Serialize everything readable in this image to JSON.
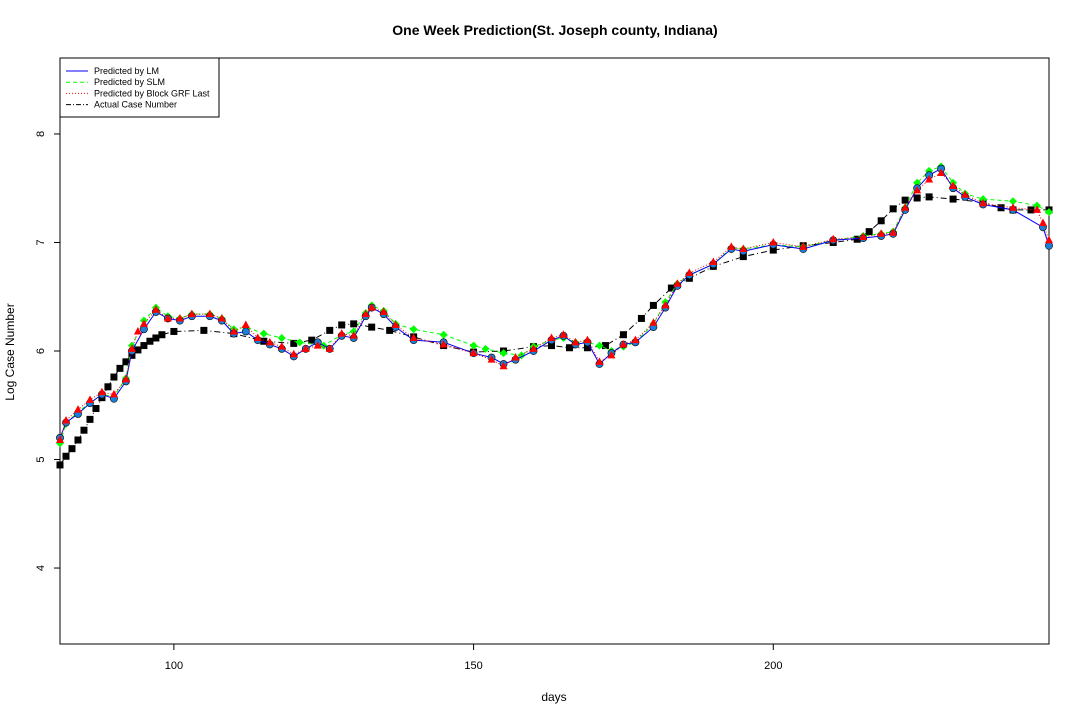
{
  "chart_data": {
    "type": "line",
    "title": "One Week Prediction(St. Joseph county, Indiana)",
    "xlabel": "days",
    "ylabel": "Log Case Number",
    "xlim": [
      81,
      246
    ],
    "ylim": [
      3.3,
      8.7
    ],
    "x_ticks": [
      100,
      150,
      200
    ],
    "y_ticks": [
      4,
      5,
      6,
      7,
      8
    ],
    "grid": false,
    "legend_position": "top-left",
    "legend": [
      {
        "label": "Predicted by LM",
        "color": "#0000ff",
        "dash": "solid"
      },
      {
        "label": "Predicted by SLM",
        "color": "#00ff00",
        "dash": "dashed"
      },
      {
        "label": "Predicted by Block GRF Last",
        "color": "#ff0000",
        "dash": "dotted"
      },
      {
        "label": "Actual Case Number",
        "color": "#000000",
        "dash": "dotdash"
      }
    ],
    "series": [
      {
        "name": "Actual Case Number",
        "color": "#000000",
        "marker": "square",
        "points": [
          [
            81,
            4.95
          ],
          [
            82,
            5.03
          ],
          [
            83,
            5.1
          ],
          [
            84,
            5.18
          ],
          [
            85,
            5.27
          ],
          [
            86,
            5.37
          ],
          [
            87,
            5.47
          ],
          [
            88,
            5.57
          ],
          [
            89,
            5.67
          ],
          [
            90,
            5.76
          ],
          [
            91,
            5.84
          ],
          [
            92,
            5.9
          ],
          [
            93,
            5.96
          ],
          [
            94,
            6.01
          ],
          [
            95,
            6.05
          ],
          [
            96,
            6.09
          ],
          [
            97,
            6.12
          ],
          [
            98,
            6.15
          ],
          [
            100,
            6.18
          ],
          [
            105,
            6.19
          ],
          [
            110,
            6.16
          ],
          [
            115,
            6.09
          ],
          [
            120,
            6.07
          ],
          [
            123,
            6.1
          ],
          [
            126,
            6.19
          ],
          [
            128,
            6.24
          ],
          [
            130,
            6.25
          ],
          [
            133,
            6.22
          ],
          [
            136,
            6.19
          ],
          [
            140,
            6.13
          ],
          [
            145,
            6.05
          ],
          [
            150,
            5.99
          ],
          [
            155,
            6.0
          ],
          [
            160,
            6.04
          ],
          [
            163,
            6.05
          ],
          [
            166,
            6.03
          ],
          [
            169,
            6.03
          ],
          [
            172,
            6.05
          ],
          [
            175,
            6.15
          ],
          [
            178,
            6.3
          ],
          [
            180,
            6.42
          ],
          [
            183,
            6.58
          ],
          [
            186,
            6.67
          ],
          [
            190,
            6.78
          ],
          [
            195,
            6.87
          ],
          [
            200,
            6.93
          ],
          [
            205,
            6.97
          ],
          [
            210,
            7.0
          ],
          [
            214,
            7.03
          ],
          [
            216,
            7.1
          ],
          [
            218,
            7.2
          ],
          [
            220,
            7.31
          ],
          [
            222,
            7.39
          ],
          [
            224,
            7.41
          ],
          [
            226,
            7.42
          ],
          [
            230,
            7.4
          ],
          [
            235,
            7.37
          ],
          [
            238,
            7.32
          ],
          [
            240,
            7.3
          ],
          [
            243,
            7.3
          ],
          [
            246,
            7.3
          ]
        ]
      },
      {
        "name": "Predicted by SLM",
        "color": "#00ff00",
        "marker": "diamond",
        "points": [
          [
            81,
            5.15
          ],
          [
            82,
            5.33
          ],
          [
            84,
            5.44
          ],
          [
            86,
            5.52
          ],
          [
            88,
            5.6
          ],
          [
            90,
            5.58
          ],
          [
            92,
            5.75
          ],
          [
            93,
            6.05
          ],
          [
            95,
            6.28
          ],
          [
            97,
            6.4
          ],
          [
            99,
            6.32
          ],
          [
            101,
            6.3
          ],
          [
            103,
            6.34
          ],
          [
            106,
            6.34
          ],
          [
            108,
            6.3
          ],
          [
            110,
            6.2
          ],
          [
            112,
            6.22
          ],
          [
            115,
            6.16
          ],
          [
            118,
            6.12
          ],
          [
            121,
            6.08
          ],
          [
            125,
            6.05
          ],
          [
            128,
            6.15
          ],
          [
            130,
            6.18
          ],
          [
            132,
            6.35
          ],
          [
            133,
            6.42
          ],
          [
            135,
            6.37
          ],
          [
            137,
            6.25
          ],
          [
            140,
            6.2
          ],
          [
            145,
            6.15
          ],
          [
            150,
            6.05
          ],
          [
            152,
            6.02
          ],
          [
            155,
            5.98
          ],
          [
            158,
            5.96
          ],
          [
            160,
            6.04
          ],
          [
            163,
            6.1
          ],
          [
            165,
            6.12
          ],
          [
            167,
            6.08
          ],
          [
            169,
            6.08
          ],
          [
            171,
            6.05
          ],
          [
            173,
            6.0
          ],
          [
            175,
            6.04
          ],
          [
            177,
            6.08
          ],
          [
            180,
            6.25
          ],
          [
            182,
            6.45
          ],
          [
            184,
            6.62
          ],
          [
            186,
            6.7
          ],
          [
            190,
            6.8
          ],
          [
            193,
            6.95
          ],
          [
            195,
            6.94
          ],
          [
            200,
            6.98
          ],
          [
            205,
            6.96
          ],
          [
            210,
            7.02
          ],
          [
            215,
            7.06
          ],
          [
            218,
            7.08
          ],
          [
            220,
            7.1
          ],
          [
            222,
            7.32
          ],
          [
            224,
            7.55
          ],
          [
            226,
            7.66
          ],
          [
            228,
            7.7
          ],
          [
            230,
            7.55
          ],
          [
            232,
            7.45
          ],
          [
            235,
            7.4
          ],
          [
            240,
            7.38
          ],
          [
            244,
            7.34
          ],
          [
            246,
            7.28
          ]
        ]
      },
      {
        "name": "Predicted by LM",
        "color": "#0000ff",
        "marker": "circle",
        "points": [
          [
            81,
            5.2
          ],
          [
            82,
            5.34
          ],
          [
            84,
            5.42
          ],
          [
            86,
            5.52
          ],
          [
            88,
            5.6
          ],
          [
            90,
            5.56
          ],
          [
            92,
            5.72
          ],
          [
            93,
            6.0
          ],
          [
            95,
            6.2
          ],
          [
            97,
            6.36
          ],
          [
            99,
            6.3
          ],
          [
            101,
            6.28
          ],
          [
            103,
            6.32
          ],
          [
            106,
            6.32
          ],
          [
            108,
            6.28
          ],
          [
            110,
            6.16
          ],
          [
            112,
            6.18
          ],
          [
            114,
            6.1
          ],
          [
            116,
            6.06
          ],
          [
            118,
            6.02
          ],
          [
            120,
            5.95
          ],
          [
            122,
            6.02
          ],
          [
            124,
            6.08
          ],
          [
            126,
            6.02
          ],
          [
            128,
            6.14
          ],
          [
            130,
            6.12
          ],
          [
            132,
            6.32
          ],
          [
            133,
            6.4
          ],
          [
            135,
            6.34
          ],
          [
            137,
            6.22
          ],
          [
            140,
            6.1
          ],
          [
            145,
            6.08
          ],
          [
            150,
            5.98
          ],
          [
            153,
            5.94
          ],
          [
            155,
            5.88
          ],
          [
            157,
            5.92
          ],
          [
            160,
            6.0
          ],
          [
            163,
            6.1
          ],
          [
            165,
            6.14
          ],
          [
            167,
            6.06
          ],
          [
            169,
            6.08
          ],
          [
            171,
            5.88
          ],
          [
            173,
            5.98
          ],
          [
            175,
            6.06
          ],
          [
            177,
            6.08
          ],
          [
            180,
            6.22
          ],
          [
            182,
            6.4
          ],
          [
            184,
            6.6
          ],
          [
            186,
            6.7
          ],
          [
            190,
            6.8
          ],
          [
            193,
            6.94
          ],
          [
            195,
            6.92
          ],
          [
            200,
            6.98
          ],
          [
            205,
            6.94
          ],
          [
            210,
            7.02
          ],
          [
            215,
            7.04
          ],
          [
            218,
            7.06
          ],
          [
            220,
            7.08
          ],
          [
            222,
            7.3
          ],
          [
            224,
            7.5
          ],
          [
            226,
            7.62
          ],
          [
            228,
            7.68
          ],
          [
            230,
            7.5
          ],
          [
            232,
            7.42
          ],
          [
            235,
            7.35
          ],
          [
            240,
            7.3
          ],
          [
            245,
            7.14
          ],
          [
            246,
            6.97
          ]
        ]
      },
      {
        "name": "Predicted by Block GRF Last",
        "color": "#ff0000",
        "marker": "triangle",
        "points": [
          [
            81,
            5.18
          ],
          [
            82,
            5.36
          ],
          [
            84,
            5.46
          ],
          [
            86,
            5.55
          ],
          [
            88,
            5.62
          ],
          [
            90,
            5.6
          ],
          [
            92,
            5.74
          ],
          [
            93,
            6.02
          ],
          [
            94,
            6.18
          ],
          [
            95,
            6.25
          ],
          [
            97,
            6.38
          ],
          [
            99,
            6.3
          ],
          [
            101,
            6.3
          ],
          [
            103,
            6.34
          ],
          [
            106,
            6.34
          ],
          [
            108,
            6.3
          ],
          [
            110,
            6.18
          ],
          [
            112,
            6.24
          ],
          [
            114,
            6.12
          ],
          [
            116,
            6.08
          ],
          [
            118,
            6.04
          ],
          [
            120,
            5.97
          ],
          [
            122,
            6.02
          ],
          [
            124,
            6.05
          ],
          [
            126,
            6.02
          ],
          [
            128,
            6.16
          ],
          [
            130,
            6.14
          ],
          [
            132,
            6.34
          ],
          [
            133,
            6.4
          ],
          [
            135,
            6.36
          ],
          [
            137,
            6.24
          ],
          [
            140,
            6.12
          ],
          [
            145,
            6.06
          ],
          [
            150,
            5.98
          ],
          [
            153,
            5.92
          ],
          [
            155,
            5.86
          ],
          [
            157,
            5.94
          ],
          [
            160,
            6.02
          ],
          [
            163,
            6.12
          ],
          [
            165,
            6.15
          ],
          [
            167,
            6.08
          ],
          [
            169,
            6.1
          ],
          [
            171,
            5.9
          ],
          [
            173,
            5.96
          ],
          [
            175,
            6.06
          ],
          [
            177,
            6.1
          ],
          [
            180,
            6.26
          ],
          [
            182,
            6.42
          ],
          [
            184,
            6.62
          ],
          [
            186,
            6.72
          ],
          [
            190,
            6.82
          ],
          [
            193,
            6.96
          ],
          [
            195,
            6.94
          ],
          [
            200,
            7.0
          ],
          [
            205,
            6.96
          ],
          [
            210,
            7.03
          ],
          [
            215,
            7.05
          ],
          [
            218,
            7.08
          ],
          [
            220,
            7.09
          ],
          [
            222,
            7.32
          ],
          [
            224,
            7.48
          ],
          [
            226,
            7.58
          ],
          [
            228,
            7.64
          ],
          [
            230,
            7.52
          ],
          [
            232,
            7.44
          ],
          [
            235,
            7.36
          ],
          [
            240,
            7.32
          ],
          [
            244,
            7.3
          ],
          [
            245,
            7.18
          ],
          [
            246,
            7.02
          ]
        ]
      }
    ]
  }
}
